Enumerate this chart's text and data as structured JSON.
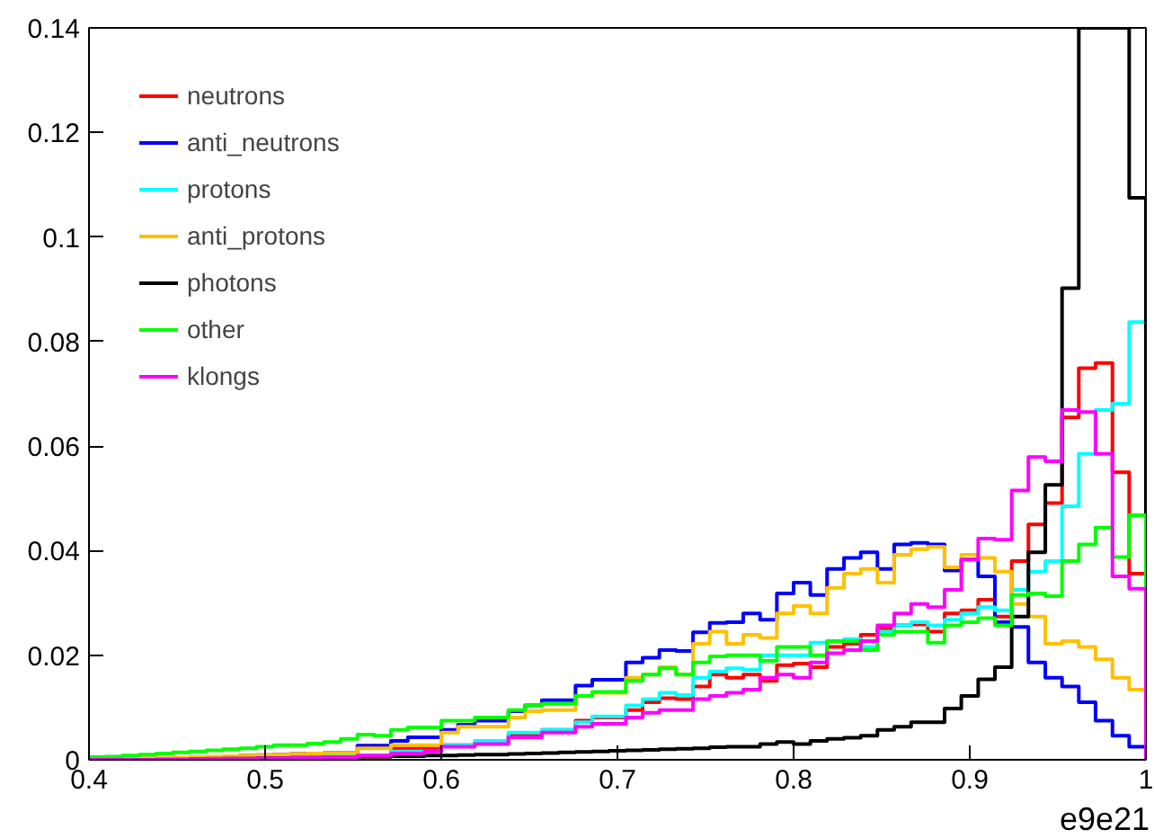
{
  "chart_data": {
    "type": "histogram",
    "xlabel": "e9e21",
    "bins": [
      0.4,
      0.4095,
      0.419,
      0.4286,
      0.4381,
      0.4476,
      0.4571,
      0.4667,
      0.4762,
      0.4857,
      0.4952,
      0.5048,
      0.5143,
      0.5238,
      0.5333,
      0.5429,
      0.5524,
      0.5619,
      0.5714,
      0.581,
      0.5905,
      0.6,
      0.6095,
      0.619,
      0.6286,
      0.6381,
      0.6476,
      0.6571,
      0.6667,
      0.6762,
      0.6857,
      0.6952,
      0.7048,
      0.7143,
      0.7238,
      0.7333,
      0.7429,
      0.7524,
      0.7619,
      0.7714,
      0.781,
      0.7905,
      0.8,
      0.8095,
      0.819,
      0.8286,
      0.8381,
      0.8476,
      0.8571,
      0.8667,
      0.8762,
      0.8857,
      0.8952,
      0.9048,
      0.9143,
      0.9238,
      0.9333,
      0.9429,
      0.9524,
      0.9619,
      0.9714,
      0.981,
      0.9905,
      1.0
    ],
    "series": [
      {
        "name": "neutrons",
        "color": "#ff0000",
        "values": [
          0,
          0,
          0,
          0.0001,
          0.0001,
          0.0001,
          0.0002,
          0.0002,
          0.0003,
          0.0003,
          0.0004,
          0.0005,
          0.0006,
          0.0007,
          0.0006,
          0.0006,
          0.0006,
          0.0006,
          0.0022,
          0.0022,
          0.0022,
          0.0028,
          0.0028,
          0.0034,
          0.0034,
          0.0048,
          0.0048,
          0.0057,
          0.0057,
          0.0075,
          0.0081,
          0.0081,
          0.0095,
          0.011,
          0.0118,
          0.0116,
          0.014,
          0.0163,
          0.0157,
          0.0163,
          0.0151,
          0.0181,
          0.0184,
          0.0177,
          0.0216,
          0.0222,
          0.0239,
          0.0251,
          0.0257,
          0.0259,
          0.0245,
          0.028,
          0.0286,
          0.0306,
          0.0274,
          0.038,
          0.045,
          0.0491,
          0.0655,
          0.0749,
          0.0759,
          0.055,
          0.0356
        ]
      },
      {
        "name": "anti_neutrons",
        "color": "#0000ff",
        "values": [
          0,
          0,
          0.0001,
          0.0002,
          0.0002,
          0.0003,
          0.0004,
          0.0005,
          0.0006,
          0.0008,
          0.0009,
          0.001,
          0.0011,
          0.0012,
          0.0013,
          0.0013,
          0.0027,
          0.0027,
          0.0036,
          0.0043,
          0.0043,
          0.0057,
          0.0067,
          0.0075,
          0.0075,
          0.0093,
          0.0104,
          0.0114,
          0.0114,
          0.0142,
          0.0153,
          0.0153,
          0.0186,
          0.0195,
          0.021,
          0.0208,
          0.0244,
          0.0262,
          0.0263,
          0.028,
          0.0268,
          0.0318,
          0.0339,
          0.0315,
          0.0365,
          0.0386,
          0.0397,
          0.0365,
          0.0412,
          0.0415,
          0.0412,
          0.0362,
          0.0383,
          0.0351,
          0.0263,
          0.0254,
          0.0186,
          0.0157,
          0.014,
          0.011,
          0.0075,
          0.0046,
          0.0025
        ]
      },
      {
        "name": "protons",
        "color": "#00ffff",
        "values": [
          0,
          0,
          0,
          0.0001,
          0.0001,
          0.0001,
          0.0002,
          0.0002,
          0.0003,
          0.0003,
          0.0004,
          0.0005,
          0.0006,
          0.0007,
          0.0008,
          0.0008,
          0.0008,
          0.0008,
          0.0016,
          0.0016,
          0.0016,
          0.0028,
          0.0028,
          0.0036,
          0.0036,
          0.0052,
          0.0052,
          0.0057,
          0.0057,
          0.0072,
          0.0083,
          0.0083,
          0.0104,
          0.0116,
          0.0128,
          0.0124,
          0.0157,
          0.0169,
          0.0175,
          0.0172,
          0.02,
          0.02,
          0.02,
          0.0224,
          0.0227,
          0.0231,
          0.0216,
          0.0245,
          0.0257,
          0.0263,
          0.0257,
          0.0268,
          0.028,
          0.0292,
          0.0286,
          0.0325,
          0.036,
          0.038,
          0.0485,
          0.0585,
          0.0669,
          0.0681,
          0.0837
        ]
      },
      {
        "name": "anti_protons",
        "color": "#ffc000",
        "values": [
          0.0001,
          0.0001,
          0.0002,
          0.0003,
          0.0003,
          0.0004,
          0.0005,
          0.0006,
          0.0007,
          0.0008,
          0.0009,
          0.001,
          0.0011,
          0.0012,
          0.0013,
          0.0013,
          0.0022,
          0.0022,
          0.0028,
          0.0028,
          0.0028,
          0.0052,
          0.0063,
          0.0063,
          0.0063,
          0.0081,
          0.0093,
          0.0095,
          0.0095,
          0.0122,
          0.0128,
          0.0128,
          0.0157,
          0.0163,
          0.0177,
          0.0163,
          0.0222,
          0.0245,
          0.0222,
          0.0239,
          0.0233,
          0.028,
          0.0294,
          0.028,
          0.0329,
          0.0356,
          0.0365,
          0.0339,
          0.0392,
          0.0403,
          0.0407,
          0.0368,
          0.0392,
          0.0386,
          0.036,
          0.0298,
          0.0274,
          0.0222,
          0.0227,
          0.0216,
          0.0192,
          0.0157,
          0.0134
        ]
      },
      {
        "name": "photons",
        "color": "#000000",
        "values": [
          0,
          0,
          0,
          0,
          0,
          0,
          0.0001,
          0.0001,
          0.0002,
          0.0002,
          0.0003,
          0.0003,
          0.0004,
          0.0004,
          0.0005,
          0.0005,
          0.0006,
          0.0006,
          0.0007,
          0.0007,
          0.0008,
          0.0008,
          0.0009,
          0.001,
          0.001,
          0.0011,
          0.0012,
          0.0013,
          0.0014,
          0.0015,
          0.0016,
          0.0017,
          0.0018,
          0.0019,
          0.002,
          0.0021,
          0.0022,
          0.0024,
          0.0025,
          0.0025,
          0.003,
          0.0034,
          0.003,
          0.0036,
          0.004,
          0.0042,
          0.0046,
          0.0057,
          0.0063,
          0.0072,
          0.0072,
          0.0098,
          0.0122,
          0.0154,
          0.0177,
          0.0274,
          0.0397,
          0.0526,
          0.0902,
          0.14,
          0.14,
          0.14,
          0.1075
        ]
      },
      {
        "name": "other",
        "color": "#00ff00",
        "values": [
          0.0005,
          0.0006,
          0.0008,
          0.001,
          0.0012,
          0.0014,
          0.0016,
          0.0018,
          0.002,
          0.0022,
          0.0025,
          0.0028,
          0.0028,
          0.0031,
          0.0034,
          0.004,
          0.0048,
          0.0046,
          0.0057,
          0.0062,
          0.0062,
          0.0075,
          0.0075,
          0.0081,
          0.0081,
          0.0095,
          0.0104,
          0.0107,
          0.0107,
          0.0122,
          0.013,
          0.013,
          0.0151,
          0.0163,
          0.0175,
          0.0163,
          0.0186,
          0.0198,
          0.02,
          0.02,
          0.0189,
          0.0216,
          0.0216,
          0.02,
          0.0227,
          0.0227,
          0.021,
          0.0239,
          0.0245,
          0.0245,
          0.0224,
          0.0257,
          0.0263,
          0.0271,
          0.0257,
          0.0315,
          0.0318,
          0.0313,
          0.038,
          0.0412,
          0.0444,
          0.0388,
          0.0468
        ]
      },
      {
        "name": "klongs",
        "color": "#ff00ff",
        "values": [
          0,
          0,
          0,
          0,
          0.0001,
          0.0001,
          0.0001,
          0.0002,
          0.0002,
          0.0002,
          0.0003,
          0.0003,
          0.0004,
          0.0004,
          0.0005,
          0.0005,
          0.0008,
          0.0008,
          0.0012,
          0.0012,
          0.0016,
          0.0025,
          0.0025,
          0.003,
          0.003,
          0.0043,
          0.0043,
          0.0052,
          0.0052,
          0.0063,
          0.0069,
          0.0069,
          0.0081,
          0.009,
          0.0095,
          0.0095,
          0.0116,
          0.0122,
          0.0128,
          0.0134,
          0.0157,
          0.0163,
          0.0157,
          0.0186,
          0.0204,
          0.021,
          0.0227,
          0.0257,
          0.028,
          0.0298,
          0.0292,
          0.0325,
          0.0383,
          0.0423,
          0.0421,
          0.0515,
          0.0579,
          0.0571,
          0.0669,
          0.0665,
          0.0585,
          0.0351,
          0.0327
        ]
      }
    ],
    "xlim": [
      0.4,
      1.0
    ],
    "ylim": [
      0,
      0.14
    ],
    "xticks": [
      0.4,
      0.5,
      0.6,
      0.7,
      0.8,
      0.9,
      {
        "value": 1.0,
        "label": "1"
      }
    ],
    "yticks": [
      0,
      0.02,
      0.04,
      0.06,
      0.08,
      {
        "value": 0.1,
        "label": "0.1"
      },
      0.12,
      0.14
    ],
    "grid": false,
    "legend": "top left"
  }
}
